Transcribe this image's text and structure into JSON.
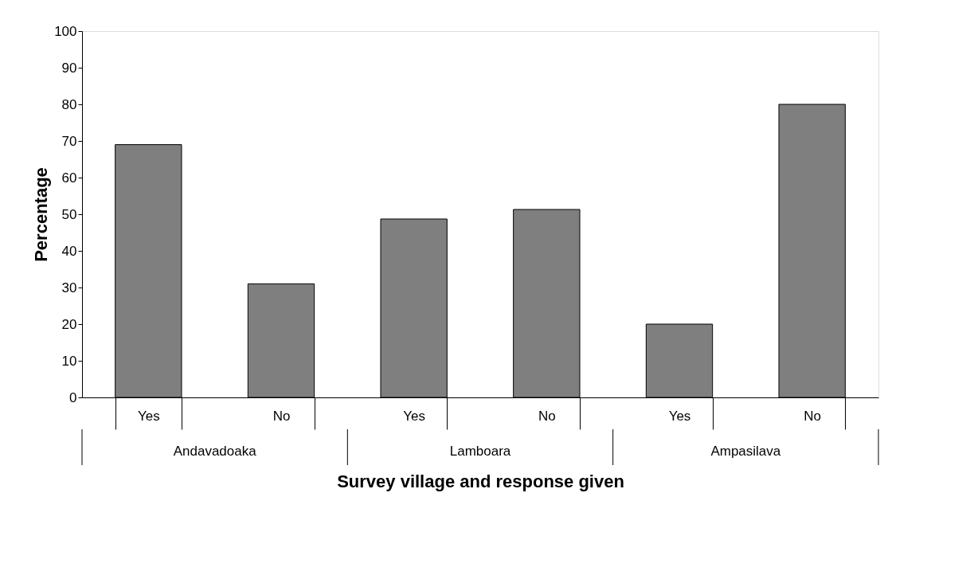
{
  "chart_data": {
    "type": "bar",
    "xlabel": "Survey village and response given",
    "ylabel": "Percentage",
    "categories": [
      "Yes",
      "No",
      "Yes",
      "No",
      "Yes",
      "No"
    ],
    "values": [
      69,
      31,
      48.7,
      51.3,
      20,
      80
    ],
    "color": "#7f7f7f",
    "annotations": [
      "Andavadoaka",
      "Lamboara",
      "Ampasilava"
    ],
    "ylim": [
      0,
      100
    ],
    "yticks": [
      0,
      10,
      20,
      30,
      40,
      50,
      60,
      70,
      80,
      90,
      100
    ],
    "grid": false
  }
}
